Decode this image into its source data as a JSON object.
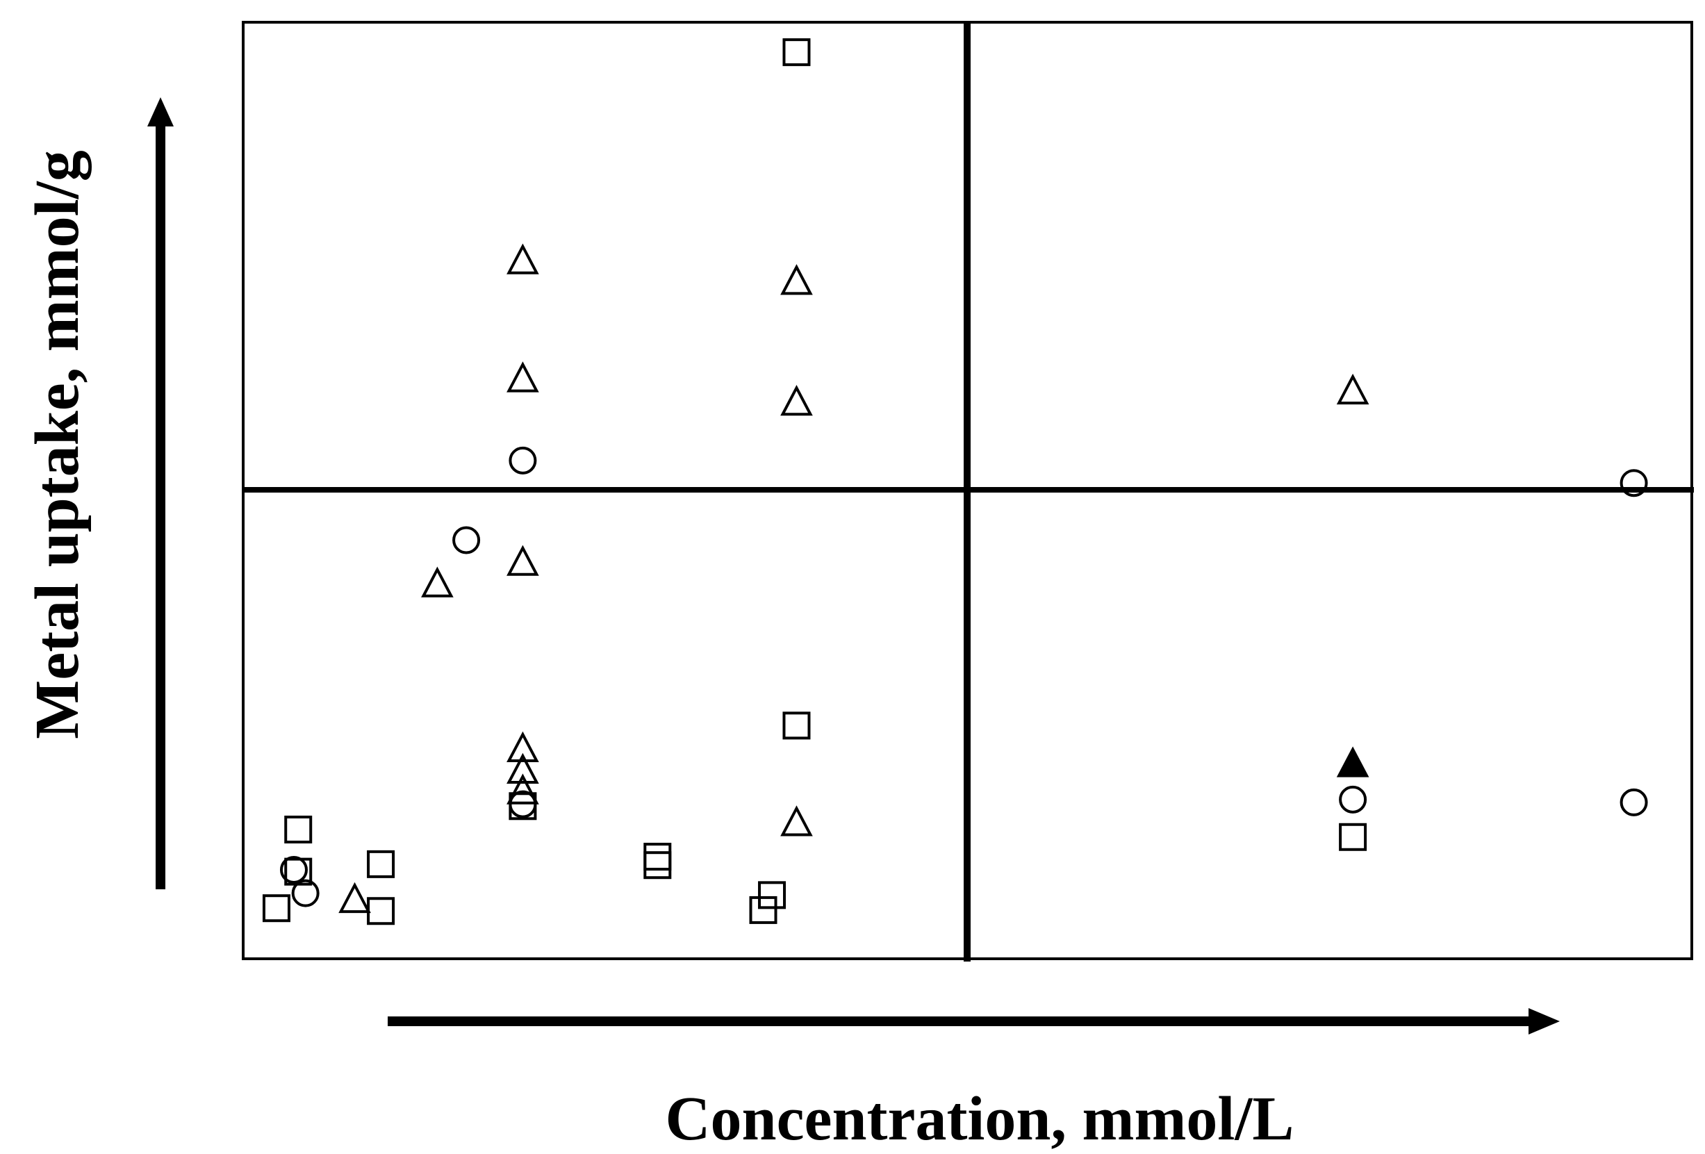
{
  "chart_data": {
    "type": "scatter",
    "title": "",
    "xlabel": "Concentration, mmol/L",
    "ylabel": "Metal uptake, mmol/g",
    "xlim": [
      0,
      100
    ],
    "ylim": [
      0,
      100
    ],
    "x_ticks": false,
    "y_ticks": false,
    "grid": false,
    "legend": "none",
    "quadrant_dividers": {
      "x": 50,
      "y": 50
    },
    "colors": {
      "marker": "#000000",
      "axes": "#000000",
      "background": "#ffffff"
    },
    "series": [
      {
        "marker": "square",
        "filled": false,
        "points": [
          {
            "x": 38.2,
            "y": 96.8
          },
          {
            "x": 38.2,
            "y": 24.9
          },
          {
            "x": 3.8,
            "y": 13.8
          },
          {
            "x": 3.8,
            "y": 9.3
          },
          {
            "x": 2.3,
            "y": 5.4
          },
          {
            "x": 9.5,
            "y": 10.1
          },
          {
            "x": 9.5,
            "y": 5.1
          },
          {
            "x": 19.3,
            "y": 16.3
          },
          {
            "x": 28.6,
            "y": 10.9
          },
          {
            "x": 28.6,
            "y": 10.0
          },
          {
            "x": 36.5,
            "y": 6.8
          },
          {
            "x": 35.9,
            "y": 5.2
          },
          {
            "x": 76.6,
            "y": 13.0
          }
        ]
      },
      {
        "marker": "triangle",
        "filled": false,
        "points": [
          {
            "x": 19.3,
            "y": 74.5
          },
          {
            "x": 38.2,
            "y": 72.3
          },
          {
            "x": 19.3,
            "y": 61.9
          },
          {
            "x": 38.2,
            "y": 59.4
          },
          {
            "x": 76.6,
            "y": 60.6
          },
          {
            "x": 19.3,
            "y": 42.3
          },
          {
            "x": 13.4,
            "y": 40.0
          },
          {
            "x": 19.3,
            "y": 22.4
          },
          {
            "x": 19.3,
            "y": 20.1
          },
          {
            "x": 19.3,
            "y": 17.9
          },
          {
            "x": 38.2,
            "y": 14.5
          },
          {
            "x": 7.7,
            "y": 6.3
          }
        ]
      },
      {
        "marker": "triangle",
        "filled": true,
        "points": [
          {
            "x": 76.6,
            "y": 20.8
          }
        ]
      },
      {
        "marker": "circle",
        "filled": false,
        "points": [
          {
            "x": 19.3,
            "y": 53.2
          },
          {
            "x": 15.4,
            "y": 44.7
          },
          {
            "x": 96.0,
            "y": 50.8
          },
          {
            "x": 19.3,
            "y": 16.5
          },
          {
            "x": 76.6,
            "y": 17.0
          },
          {
            "x": 96.0,
            "y": 16.7
          },
          {
            "x": 3.5,
            "y": 9.5
          },
          {
            "x": 4.3,
            "y": 7.0
          }
        ]
      }
    ]
  }
}
